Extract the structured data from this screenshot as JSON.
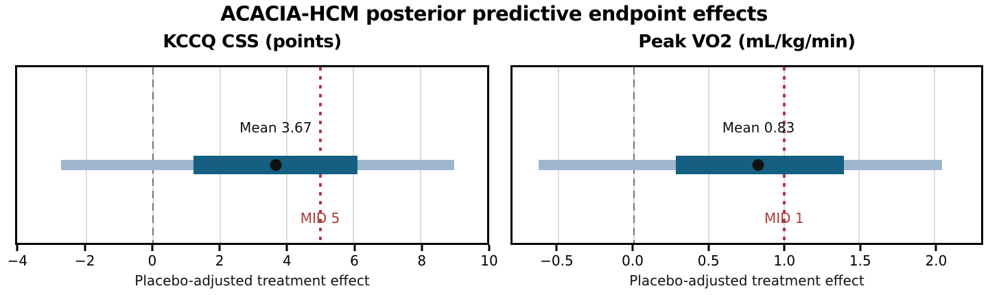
{
  "figure": {
    "title": "ACACIA-HCM posterior predictive endpoint effects"
  },
  "chart_data": {
    "type": "interval",
    "title": "ACACIA-HCM posterior predictive endpoint effects",
    "grid": true,
    "orientation": "horizontal",
    "panels": [
      {
        "title": "KCCQ CSS (points)",
        "xlabel": "Placebo-adjusted treatment effect",
        "xlim": [
          -4.07,
          10.0
        ],
        "ticks": [
          {
            "v": -4,
            "label": "−4"
          },
          {
            "v": -2,
            "label": "−2"
          },
          {
            "v": 0,
            "label": "0"
          },
          {
            "v": 2,
            "label": "2"
          },
          {
            "v": 4,
            "label": "4"
          },
          {
            "v": 6,
            "label": "6"
          },
          {
            "v": 8,
            "label": "8"
          },
          {
            "v": 10,
            "label": "10"
          }
        ],
        "mean": 3.67,
        "mean_label": "Mean 3.67",
        "inner_interval": [
          1.21,
          6.12
        ],
        "outer_interval": [
          -2.76,
          9.02
        ],
        "zero_line": 0,
        "mid_value": 5,
        "mid_label": "MID 5"
      },
      {
        "title": "Peak VO2 (mL/kg/min)",
        "xlabel": "Placebo-adjusted treatment effect",
        "xlim": [
          -0.805,
          2.31
        ],
        "ticks": [
          {
            "v": -0.5,
            "label": "−0.5"
          },
          {
            "v": 0.0,
            "label": "0.0"
          },
          {
            "v": 0.5,
            "label": "0.5"
          },
          {
            "v": 1.0,
            "label": "1.0"
          },
          {
            "v": 1.5,
            "label": "1.5"
          },
          {
            "v": 2.0,
            "label": "2.0"
          }
        ],
        "mean": 0.83,
        "mean_label": "Mean 0.83",
        "inner_interval": [
          0.28,
          1.4
        ],
        "outer_interval": [
          -0.63,
          2.05
        ],
        "zero_line": 0,
        "mid_value": 1,
        "mid_label": "MID 1"
      }
    ],
    "colors": {
      "outer_interval": "#9fb6cf",
      "inner_interval": "#145f82",
      "mean_dot": "#111111",
      "mid_line": "#b03a3a",
      "zero_line": "#737373",
      "gridline": "#dcdcdc",
      "text": "#000000"
    }
  }
}
